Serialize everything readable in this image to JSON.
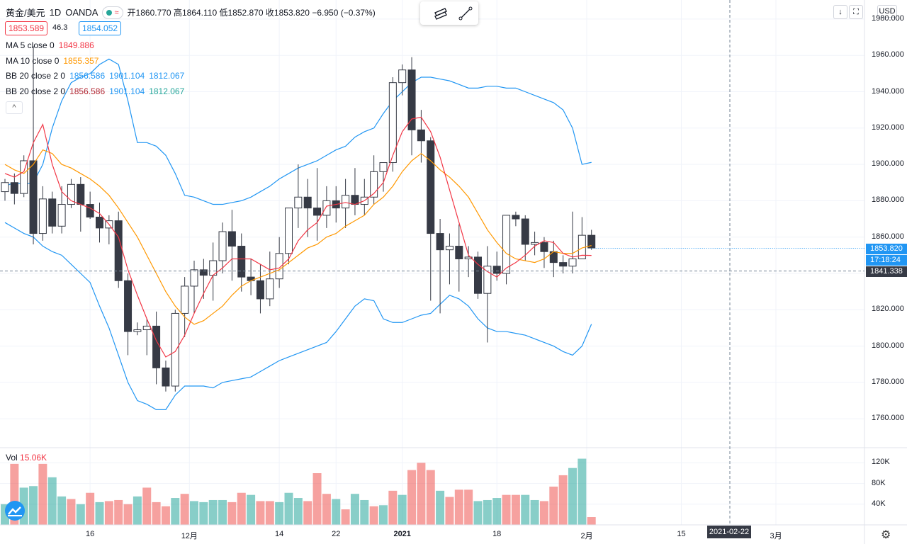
{
  "header": {
    "symbol": "黄金/美元",
    "interval": "1D",
    "source": "OANDA",
    "toggle_label": "≈",
    "ohlc": {
      "open_label": "开",
      "open": "1860.770",
      "high_label": "高",
      "high": "1864.110",
      "low_label": "低",
      "low": "1852.870",
      "close_label": "收",
      "close": "1853.820",
      "change": "−6.950 (−0.37%)"
    },
    "sell_price": "1853.589",
    "spread": "46.3",
    "buy_price": "1854.052"
  },
  "indicators": [
    {
      "name": "MA 5 close 0",
      "values": [
        "1849.886"
      ],
      "color": "#f23645"
    },
    {
      "name": "MA 10 close 0",
      "values": [
        "1855.357"
      ],
      "color": "#ff9800"
    },
    {
      "name": "BB 20 close 2 0",
      "values": [
        "1856.586",
        "1901.104",
        "1812.067"
      ],
      "color": "#2196f3"
    },
    {
      "name": "BB 20 close 2 0",
      "values": [
        "1856.586",
        "1901.104",
        "1812.067"
      ],
      "color": "#b22833"
    }
  ],
  "collapse_label": "^",
  "currency": "USD",
  "price_axis_ticks": [
    "1980.000",
    "1960.000",
    "1940.000",
    "1920.000",
    "1900.000",
    "1880.000",
    "1860.000",
    "1840.000",
    "1820.000",
    "1800.000",
    "1780.000",
    "1760.000"
  ],
  "volume_axis_ticks": [
    "120K",
    "80K",
    "40K"
  ],
  "time_axis_ticks": [
    "16",
    "12月",
    "14",
    "22",
    "2021",
    "18",
    "2月",
    "15",
    "3月"
  ],
  "current_price_tag": "1853.820",
  "countdown_tag": "17:18:24",
  "crosshair_price_tag": "1841.338",
  "crosshair_date": "2021-02-22",
  "volume": {
    "label": "Vol",
    "value": "15.06K"
  },
  "colors": {
    "up": "#ffffff",
    "down": "#363a45",
    "vol_up": "#26a69a",
    "vol_down": "#ef5350",
    "ma5": "#f23645",
    "ma10": "#ff9800",
    "bb": "#2196f3"
  },
  "chart_data": {
    "type": "candlestick",
    "title": "黄金/美元 1D OANDA",
    "ylim": [
      1750,
      1985
    ],
    "ohlc": [
      [
        1885,
        1892,
        1880,
        1890
      ],
      [
        1890,
        1895,
        1878,
        1884
      ],
      [
        1884,
        1905,
        1882,
        1902
      ],
      [
        1902,
        1965,
        1856,
        1862
      ],
      [
        1862,
        1888,
        1858,
        1881
      ],
      [
        1881,
        1885,
        1862,
        1866
      ],
      [
        1866,
        1888,
        1862,
        1878
      ],
      [
        1878,
        1892,
        1876,
        1889
      ],
      [
        1889,
        1893,
        1863,
        1878
      ],
      [
        1878,
        1885,
        1870,
        1871
      ],
      [
        1871,
        1879,
        1857,
        1865
      ],
      [
        1865,
        1872,
        1856,
        1869
      ],
      [
        1869,
        1874,
        1832,
        1836
      ],
      [
        1836,
        1840,
        1795,
        1808
      ],
      [
        1808,
        1813,
        1806,
        1809
      ],
      [
        1809,
        1815,
        1795,
        1811
      ],
      [
        1811,
        1819,
        1779,
        1788
      ],
      [
        1788,
        1792,
        1775,
        1778
      ],
      [
        1778,
        1820,
        1775,
        1818
      ],
      [
        1818,
        1838,
        1805,
        1833
      ],
      [
        1833,
        1847,
        1818,
        1842
      ],
      [
        1842,
        1848,
        1826,
        1839
      ],
      [
        1839,
        1857,
        1825,
        1847
      ],
      [
        1847,
        1868,
        1840,
        1863
      ],
      [
        1863,
        1875,
        1836,
        1855
      ],
      [
        1855,
        1862,
        1830,
        1838
      ],
      [
        1838,
        1848,
        1828,
        1836
      ],
      [
        1836,
        1845,
        1818,
        1826
      ],
      [
        1826,
        1852,
        1822,
        1837
      ],
      [
        1837,
        1860,
        1832,
        1851
      ],
      [
        1851,
        1874,
        1845,
        1876
      ],
      [
        1876,
        1900,
        1865,
        1882
      ],
      [
        1882,
        1892,
        1860,
        1876
      ],
      [
        1876,
        1898,
        1858,
        1872
      ],
      [
        1872,
        1888,
        1865,
        1880
      ],
      [
        1880,
        1888,
        1868,
        1876
      ],
      [
        1876,
        1892,
        1865,
        1883
      ],
      [
        1883,
        1898,
        1872,
        1878
      ],
      [
        1878,
        1892,
        1872,
        1882
      ],
      [
        1882,
        1905,
        1878,
        1896
      ],
      [
        1896,
        1900,
        1885,
        1901
      ],
      [
        1901,
        1948,
        1896,
        1945
      ],
      [
        1945,
        1955,
        1938,
        1952
      ],
      [
        1952,
        1959,
        1905,
        1919
      ],
      [
        1919,
        1930,
        1901,
        1913
      ],
      [
        1913,
        1915,
        1825,
        1862
      ],
      [
        1862,
        1870,
        1818,
        1853
      ],
      [
        1853,
        1862,
        1834,
        1855
      ],
      [
        1855,
        1867,
        1830,
        1848
      ],
      [
        1848,
        1855,
        1838,
        1849
      ],
      [
        1849,
        1852,
        1826,
        1829
      ],
      [
        1829,
        1855,
        1802,
        1844
      ],
      [
        1844,
        1852,
        1836,
        1840
      ],
      [
        1840,
        1872,
        1834,
        1872
      ],
      [
        1872,
        1874,
        1866,
        1870
      ],
      [
        1870,
        1872,
        1847,
        1856
      ],
      [
        1856,
        1863,
        1850,
        1857
      ],
      [
        1857,
        1860,
        1843,
        1852
      ],
      [
        1852,
        1858,
        1838,
        1846
      ],
      [
        1846,
        1850,
        1840,
        1844
      ],
      [
        1844,
        1874,
        1840,
        1848
      ],
      [
        1848,
        1871,
        1850,
        1861
      ],
      [
        1861,
        1864,
        1853,
        1854
      ]
    ],
    "ma5": [
      1895,
      1893,
      1896,
      1912,
      1922,
      1900,
      1885,
      1880,
      1878,
      1876,
      1873,
      1867,
      1860,
      1842,
      1828,
      1815,
      1803,
      1794,
      1797,
      1806,
      1818,
      1829,
      1839,
      1843,
      1848,
      1848,
      1848,
      1845,
      1842,
      1843,
      1848,
      1858,
      1864,
      1868,
      1877,
      1878,
      1879,
      1878,
      1880,
      1884,
      1890,
      1905,
      1918,
      1925,
      1926,
      1918,
      1904,
      1886,
      1868,
      1850,
      1845,
      1841,
      1838,
      1843,
      1846,
      1850,
      1855,
      1858,
      1857,
      1851,
      1849,
      1850,
      1849.886
    ],
    "ma10": [
      1900,
      1897,
      1895,
      1900,
      1908,
      1906,
      1900,
      1898,
      1895,
      1892,
      1888,
      1883,
      1876,
      1868,
      1860,
      1850,
      1840,
      1830,
      1822,
      1816,
      1812,
      1814,
      1818,
      1822,
      1828,
      1833,
      1836,
      1838,
      1840,
      1842,
      1846,
      1850,
      1854,
      1856,
      1860,
      1862,
      1866,
      1869,
      1872,
      1878,
      1882,
      1888,
      1896,
      1902,
      1906,
      1902,
      1897,
      1893,
      1888,
      1882,
      1873,
      1864,
      1857,
      1851,
      1848,
      1847,
      1846,
      1848,
      1852,
      1851,
      1851,
      1854,
      1855.357
    ],
    "bb_upper": [
      1888,
      1890,
      1889,
      1890,
      1900,
      1920,
      1935,
      1945,
      1948,
      1950,
      1955,
      1958,
      1955,
      1935,
      1912,
      1912,
      1910,
      1905,
      1895,
      1883,
      1882,
      1880,
      1878,
      1878,
      1879,
      1880,
      1882,
      1885,
      1888,
      1892,
      1895,
      1898,
      1900,
      1902,
      1905,
      1908,
      1910,
      1915,
      1918,
      1920,
      1928,
      1935,
      1940,
      1945,
      1948,
      1948,
      1947,
      1946,
      1944,
      1942,
      1942,
      1943,
      1943,
      1942,
      1942,
      1940,
      1938,
      1936,
      1934,
      1930,
      1920,
      1900,
      1901.104
    ],
    "bb_lower": [
      1868,
      1865,
      1862,
      1860,
      1855,
      1852,
      1850,
      1845,
      1840,
      1835,
      1822,
      1810,
      1795,
      1780,
      1770,
      1768,
      1765,
      1765,
      1773,
      1778,
      1778,
      1778,
      1777,
      1780,
      1781,
      1782,
      1783,
      1786,
      1789,
      1792,
      1794,
      1796,
      1798,
      1800,
      1802,
      1808,
      1815,
      1822,
      1826,
      1825,
      1815,
      1813,
      1813,
      1815,
      1817,
      1818,
      1823,
      1828,
      1826,
      1822,
      1815,
      1810,
      1808,
      1808,
      1807,
      1806,
      1804,
      1802,
      1800,
      1797,
      1795,
      1800,
      1812.067
    ],
    "volume": [
      {
        "v": 40,
        "up": true
      },
      {
        "v": 118,
        "up": false
      },
      {
        "v": 72,
        "up": true
      },
      {
        "v": 75,
        "up": true
      },
      {
        "v": 118,
        "up": false
      },
      {
        "v": 92,
        "up": true
      },
      {
        "v": 55,
        "up": true
      },
      {
        "v": 50,
        "up": false
      },
      {
        "v": 40,
        "up": true
      },
      {
        "v": 62,
        "up": false
      },
      {
        "v": 44,
        "up": true
      },
      {
        "v": 46,
        "up": false
      },
      {
        "v": 48,
        "up": false
      },
      {
        "v": 40,
        "up": false
      },
      {
        "v": 55,
        "up": true
      },
      {
        "v": 72,
        "up": false
      },
      {
        "v": 44,
        "up": false
      },
      {
        "v": 36,
        "up": false
      },
      {
        "v": 52,
        "up": true
      },
      {
        "v": 60,
        "up": false
      },
      {
        "v": 46,
        "up": true
      },
      {
        "v": 44,
        "up": true
      },
      {
        "v": 48,
        "up": true
      },
      {
        "v": 48,
        "up": true
      },
      {
        "v": 44,
        "up": false
      },
      {
        "v": 62,
        "up": false
      },
      {
        "v": 58,
        "up": true
      },
      {
        "v": 46,
        "up": false
      },
      {
        "v": 46,
        "up": false
      },
      {
        "v": 44,
        "up": true
      },
      {
        "v": 62,
        "up": true
      },
      {
        "v": 52,
        "up": true
      },
      {
        "v": 46,
        "up": false
      },
      {
        "v": 100,
        "up": false
      },
      {
        "v": 60,
        "up": false
      },
      {
        "v": 50,
        "up": true
      },
      {
        "v": 30,
        "up": false
      },
      {
        "v": 60,
        "up": true
      },
      {
        "v": 48,
        "up": true
      },
      {
        "v": 36,
        "up": false
      },
      {
        "v": 38,
        "up": true
      },
      {
        "v": 66,
        "up": false
      },
      {
        "v": 58,
        "up": true
      },
      {
        "v": 106,
        "up": false
      },
      {
        "v": 120,
        "up": false
      },
      {
        "v": 106,
        "up": false
      },
      {
        "v": 66,
        "up": true
      },
      {
        "v": 54,
        "up": false
      },
      {
        "v": 68,
        "up": false
      },
      {
        "v": 68,
        "up": false
      },
      {
        "v": 46,
        "up": true
      },
      {
        "v": 48,
        "up": true
      },
      {
        "v": 52,
        "up": true
      },
      {
        "v": 58,
        "up": false
      },
      {
        "v": 58,
        "up": false
      },
      {
        "v": 58,
        "up": true
      },
      {
        "v": 48,
        "up": true
      },
      {
        "v": 46,
        "up": false
      },
      {
        "v": 74,
        "up": false
      },
      {
        "v": 96,
        "up": false
      },
      {
        "v": 110,
        "up": true
      },
      {
        "v": 128,
        "up": true
      },
      {
        "v": 15.06,
        "up": false
      }
    ],
    "vol_ylim": [
      0,
      140
    ]
  }
}
